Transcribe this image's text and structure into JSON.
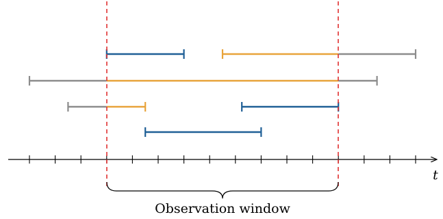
{
  "axis": {
    "label": "t"
  },
  "observation_window": {
    "label": "Observation window",
    "color": "#e03030"
  },
  "colors": {
    "blue": "#1f5f96",
    "orange": "#e8a33a",
    "gray": "#8c8c8c",
    "axis": "#000000"
  },
  "intervals": [
    {
      "row": 1,
      "segments": [
        {
          "from": 3,
          "to": 6,
          "color": "blue"
        }
      ],
      "start_cap": "blue",
      "end_cap": "blue"
    },
    {
      "row": 1,
      "segments": [
        {
          "from": 7.5,
          "to": 12,
          "color": "orange"
        },
        {
          "from": 12,
          "to": 15,
          "color": "gray"
        }
      ],
      "start_cap": "orange",
      "end_cap": "gray"
    },
    {
      "row": 2,
      "segments": [
        {
          "from": 0,
          "to": 3,
          "color": "gray"
        },
        {
          "from": 3,
          "to": 12,
          "color": "orange"
        },
        {
          "from": 12,
          "to": 13.5,
          "color": "gray"
        }
      ],
      "start_cap": "gray",
      "end_cap": "gray"
    },
    {
      "row": 3,
      "segments": [
        {
          "from": 1.5,
          "to": 3,
          "color": "gray"
        },
        {
          "from": 3,
          "to": 4.5,
          "color": "orange"
        }
      ],
      "start_cap": "gray",
      "end_cap": "orange"
    },
    {
      "row": 3,
      "segments": [
        {
          "from": 8.25,
          "to": 12,
          "color": "blue"
        }
      ],
      "start_cap": "blue",
      "end_cap": "blue"
    },
    {
      "row": 4,
      "segments": [
        {
          "from": 4.5,
          "to": 9,
          "color": "blue"
        }
      ],
      "start_cap": "blue",
      "end_cap": "blue"
    }
  ],
  "window_range": [
    3,
    12
  ],
  "tick_range": [
    0,
    15
  ]
}
